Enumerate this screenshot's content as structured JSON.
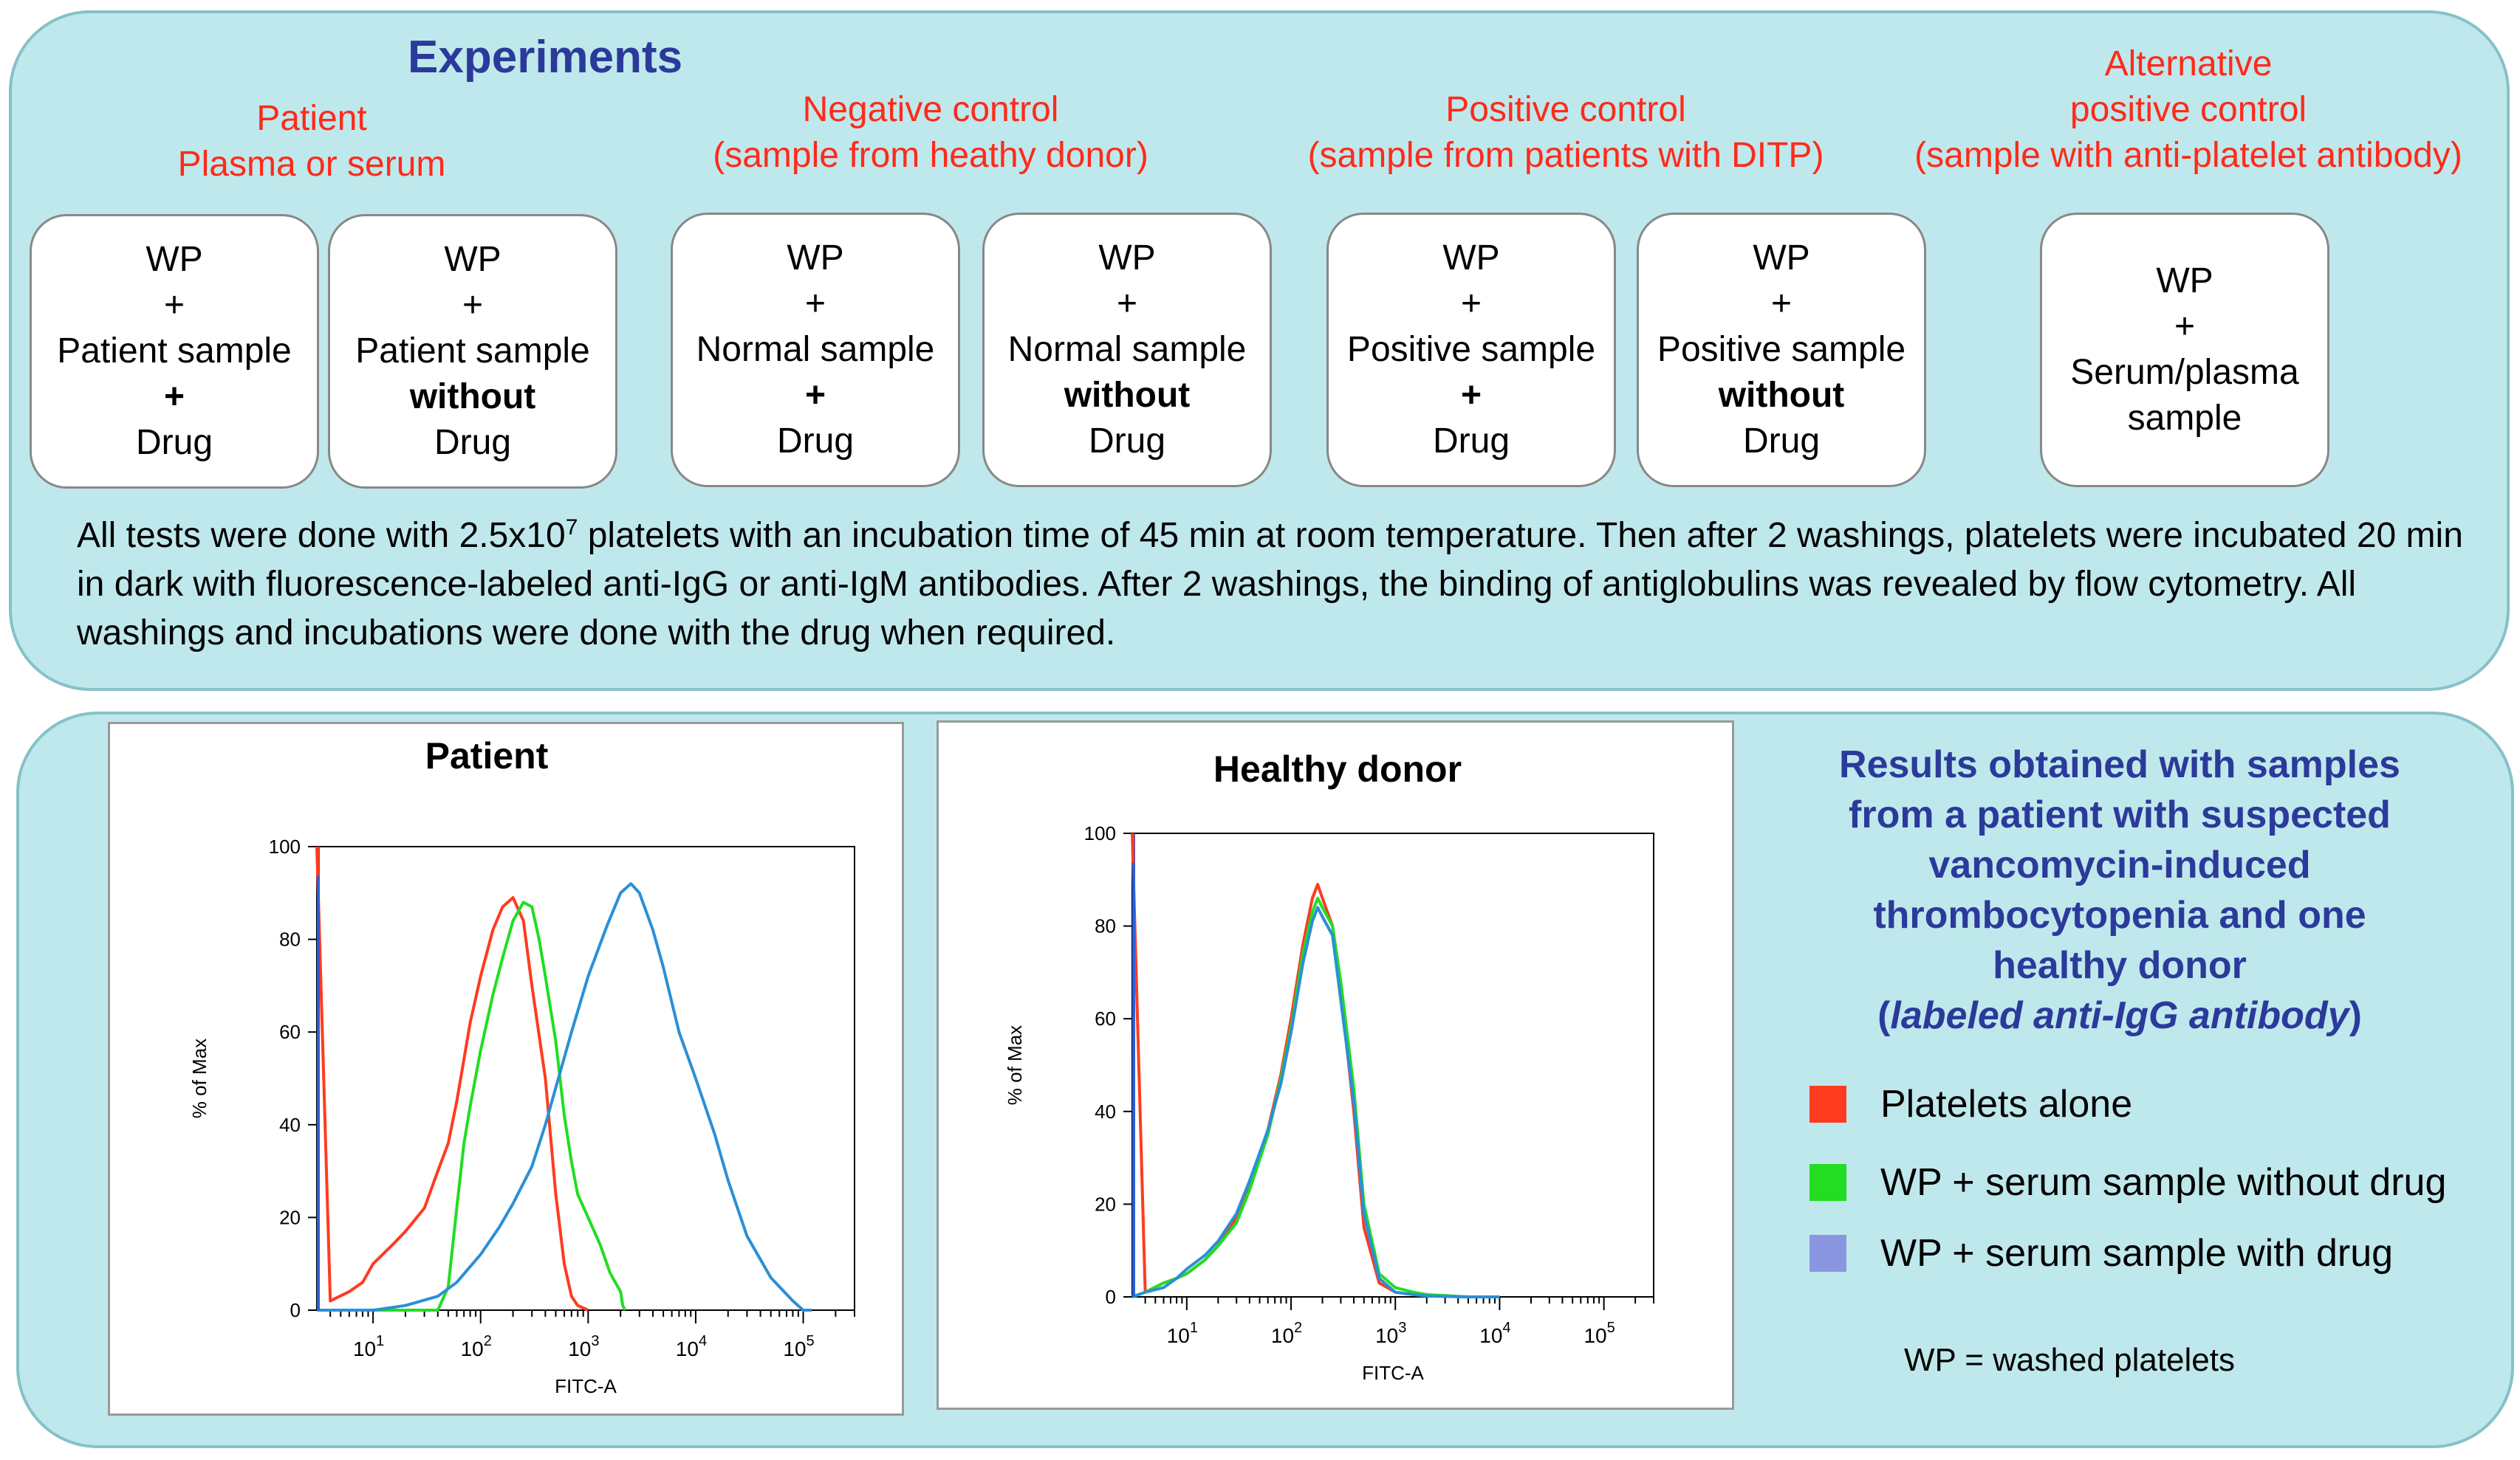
{
  "experiments": {
    "title": "Experiments",
    "groups": [
      {
        "label_lines": [
          "Patient",
          "Plasma or serum"
        ]
      },
      {
        "label_lines": [
          "Negative control",
          "(sample from heathy donor)"
        ]
      },
      {
        "label_lines": [
          "Positive control",
          "(sample from patients with DITP)"
        ]
      },
      {
        "label_lines": [
          "Alternative",
          "positive control",
          "(sample with anti-platelet antibody)"
        ]
      }
    ],
    "cards": [
      {
        "lines": [
          "WP",
          "+",
          "Patient sample",
          "+",
          "Drug"
        ]
      },
      {
        "lines": [
          "WP",
          "+",
          "Patient sample",
          "without",
          "Drug"
        ]
      },
      {
        "lines": [
          "WP",
          "+",
          "Normal sample",
          "+",
          "Drug"
        ]
      },
      {
        "lines": [
          "WP",
          "+",
          "Normal sample",
          "without",
          "Drug"
        ]
      },
      {
        "lines": [
          "WP",
          "+",
          "Positive sample",
          "+",
          "Drug"
        ]
      },
      {
        "lines": [
          "WP",
          "+",
          "Positive sample",
          "without",
          "Drug"
        ]
      },
      {
        "lines": [
          "WP",
          "+",
          "Serum/plasma",
          "sample"
        ]
      }
    ],
    "description": {
      "part1": "All tests were done with 2.5x10",
      "sup": "7",
      "part2": " platelets with an incubation time of 45 min at room temperature. Then after 2 washings, platelets were incubated 20 min in dark with fluorescence-labeled anti-IgG or anti-IgM antibodies.  After 2 washings, the binding of antiglobulins was revealed by flow cytometry. All washings and incubations were done with the drug when required."
    }
  },
  "results": {
    "title_lines": [
      "Results obtained with samples",
      "from a patient with suspected",
      "vancomycin-induced",
      "thrombocytopenia and one",
      "healthy donor"
    ],
    "title_italic": "labeled anti-IgG antibody",
    "legend": [
      {
        "label": "Platelets alone",
        "color": "#ff3b1f"
      },
      {
        "label": "WP + serum sample without drug",
        "color": "#22dd22"
      },
      {
        "label": "WP + serum sample with drug",
        "color": "#8a97e0"
      }
    ],
    "footnote": "WP = washed platelets"
  },
  "chart_data": [
    {
      "type": "line",
      "title": "Patient",
      "xlabel": "FITC-A",
      "ylabel": "% of Max",
      "x_scale": "log",
      "xlim": [
        3,
        300000
      ],
      "ylim": [
        0,
        100
      ],
      "x_ticks": [
        "10^1",
        "10^2",
        "10^3",
        "10^4",
        "10^5"
      ],
      "y_ticks": [
        0,
        20,
        40,
        60,
        80,
        100
      ],
      "series": [
        {
          "color": "#ff3b1f",
          "x": [
            3,
            4,
            6,
            8,
            10,
            15,
            20,
            30,
            40,
            50,
            60,
            80,
            100,
            130,
            160,
            200,
            250,
            300,
            400,
            500,
            600,
            700,
            800,
            1000
          ],
          "y": [
            100,
            2,
            4,
            6,
            10,
            14,
            17,
            22,
            30,
            36,
            45,
            62,
            72,
            82,
            87,
            89,
            84,
            70,
            50,
            25,
            10,
            3,
            1,
            0
          ]
        },
        {
          "color": "#22dd22",
          "x": [
            3,
            40,
            50,
            60,
            70,
            80,
            100,
            130,
            160,
            200,
            250,
            300,
            350,
            400,
            500,
            600,
            700,
            800,
            1000,
            1300,
            1600,
            2000,
            2100,
            2200
          ],
          "y": [
            0,
            0,
            5,
            22,
            36,
            44,
            56,
            68,
            76,
            84,
            88,
            87,
            80,
            72,
            58,
            42,
            32,
            25,
            20,
            14,
            8,
            4,
            1,
            0
          ]
        },
        {
          "color": "#2a8fd8",
          "x": [
            3,
            10,
            20,
            40,
            60,
            100,
            150,
            200,
            300,
            400,
            500,
            700,
            1000,
            1500,
            2000,
            2500,
            3000,
            4000,
            5000,
            7000,
            10000,
            15000,
            20000,
            30000,
            50000,
            80000,
            100000,
            120000
          ],
          "y": [
            0,
            0,
            1,
            3,
            6,
            12,
            18,
            23,
            31,
            40,
            48,
            60,
            72,
            83,
            90,
            92,
            90,
            82,
            74,
            60,
            50,
            38,
            28,
            16,
            7,
            2,
            0,
            0
          ]
        }
      ]
    },
    {
      "type": "line",
      "title": "Healthy donor",
      "xlabel": "FITC-A",
      "ylabel": "% of Max",
      "x_scale": "log",
      "xlim": [
        3,
        300000
      ],
      "ylim": [
        0,
        100
      ],
      "x_ticks": [
        "10^1",
        "10^2",
        "10^3",
        "10^4",
        "10^5"
      ],
      "y_ticks": [
        0,
        20,
        40,
        60,
        80,
        100
      ],
      "series": [
        {
          "color": "#ff3b1f",
          "x": [
            3,
            4,
            6,
            8,
            10,
            15,
            20,
            30,
            40,
            60,
            80,
            100,
            130,
            160,
            180,
            200,
            250,
            300,
            400,
            500,
            700,
            1000,
            1500,
            2000,
            5000,
            10000
          ],
          "y": [
            100,
            1,
            3,
            4,
            5,
            8,
            11,
            17,
            24,
            36,
            48,
            60,
            76,
            86,
            89,
            86,
            80,
            66,
            40,
            15,
            3,
            1,
            0.5,
            0.2,
            0,
            0
          ]
        },
        {
          "color": "#22dd22",
          "x": [
            3,
            4,
            6,
            8,
            10,
            15,
            20,
            30,
            40,
            60,
            80,
            100,
            130,
            160,
            180,
            200,
            250,
            300,
            400,
            500,
            700,
            1000,
            1500,
            2000,
            5000,
            10000
          ],
          "y": [
            0,
            1,
            3,
            4,
            5,
            8,
            11,
            16,
            23,
            35,
            47,
            58,
            74,
            83,
            86,
            84,
            80,
            68,
            45,
            20,
            5,
            2,
            1,
            0.5,
            0,
            0
          ]
        },
        {
          "color": "#2a8fd8",
          "x": [
            3,
            4,
            6,
            8,
            10,
            15,
            20,
            30,
            40,
            60,
            80,
            100,
            130,
            160,
            180,
            200,
            250,
            300,
            400,
            500,
            700,
            1000,
            1500,
            2000,
            5000,
            10000
          ],
          "y": [
            0,
            1,
            2,
            4,
            6,
            9,
            12,
            18,
            25,
            36,
            46,
            57,
            72,
            81,
            84,
            82,
            78,
            64,
            42,
            18,
            4,
            1,
            0.5,
            0.2,
            0,
            0
          ]
        }
      ]
    }
  ]
}
